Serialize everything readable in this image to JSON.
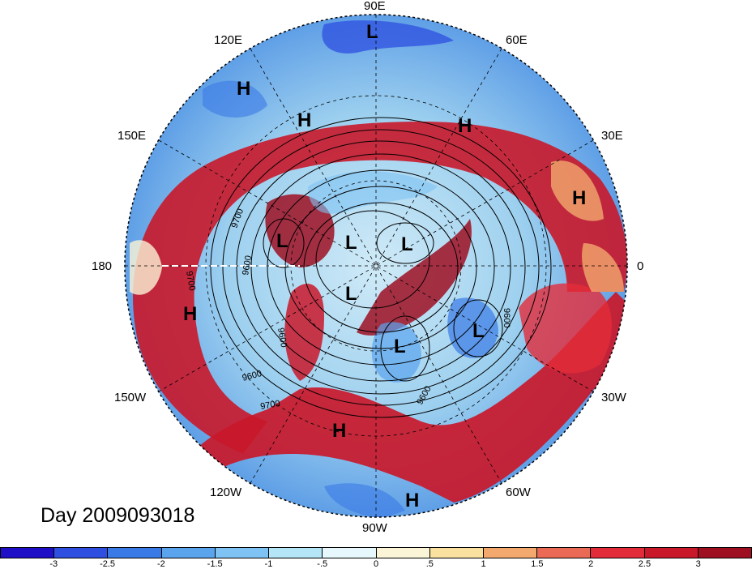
{
  "title": "Day 2009093018",
  "longitude_labels": [
    {
      "id": "90e",
      "text": "90E"
    },
    {
      "id": "60e",
      "text": "60E"
    },
    {
      "id": "30e",
      "text": "30E"
    },
    {
      "id": "0",
      "text": "0"
    },
    {
      "id": "30w",
      "text": "30W"
    },
    {
      "id": "60w",
      "text": "60W"
    },
    {
      "id": "90w",
      "text": "90W"
    },
    {
      "id": "120w",
      "text": "120W"
    },
    {
      "id": "150w",
      "text": "150W"
    },
    {
      "id": "180",
      "text": "180"
    },
    {
      "id": "150e",
      "text": "150E"
    },
    {
      "id": "120e",
      "text": "120E"
    }
  ],
  "pressure_systems": [
    "L",
    "H",
    "H",
    "H",
    "H",
    "L",
    "L",
    "L",
    "L",
    "L",
    "L",
    "H",
    "H",
    "H"
  ],
  "contour_labels": [
    "9700",
    "9600",
    "9700",
    "9600",
    "9600",
    "9600",
    "9600",
    "9700"
  ],
  "colorbar": {
    "ticks": [
      "-3",
      "-2.5",
      "-2",
      "-1.5",
      "-1",
      "-.5",
      "0",
      ".5",
      "1",
      "1.5",
      "2",
      "2.5",
      "3"
    ],
    "colors": [
      "#1f10c8",
      "#2e4fe0",
      "#3a7ae6",
      "#5aa4ee",
      "#7ec3f3",
      "#b4e6f7",
      "#e6f8fb",
      "#fbf4d6",
      "#fbe1a0",
      "#f3a96e",
      "#ea6a55",
      "#e32c3a",
      "#c9182a",
      "#9e0f22"
    ]
  }
}
